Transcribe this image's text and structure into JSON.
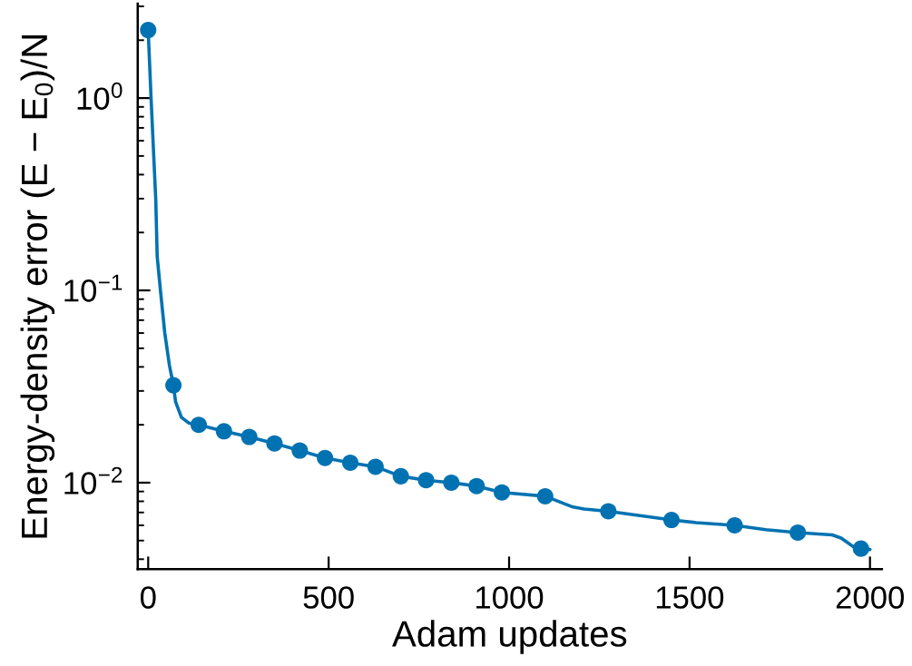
{
  "chart_data": {
    "type": "line",
    "xlabel": "Adam updates",
    "ylabel": "Energy-density error (E − E$_{0}$)/N",
    "log": "y",
    "grid": false,
    "xlim": [
      -29,
      2033
    ],
    "ylim": [
      0.00355,
      3.1
    ],
    "xticks": [
      0,
      500,
      1000,
      1500,
      2000
    ],
    "yticks": [
      {
        "value": 1,
        "label": "10$^{0}$"
      },
      {
        "value": 0.1,
        "label": "10$^{−1}$"
      },
      {
        "value": 0.01,
        "label": "10$^{−2}$"
      },
      {
        "value": 0.004,
        "label": null
      },
      {
        "value": 0.005,
        "label": null
      },
      {
        "value": 0.006,
        "label": null
      },
      {
        "value": 0.007,
        "label": null
      },
      {
        "value": 0.008,
        "label": null
      },
      {
        "value": 0.009,
        "label": null
      },
      {
        "value": 0.02,
        "label": null
      },
      {
        "value": 0.03,
        "label": null
      },
      {
        "value": 0.04,
        "label": null
      },
      {
        "value": 0.05,
        "label": null
      },
      {
        "value": 0.06,
        "label": null
      },
      {
        "value": 0.07,
        "label": null
      },
      {
        "value": 0.08,
        "label": null
      },
      {
        "value": 0.09,
        "label": null
      },
      {
        "value": 0.2,
        "label": null
      },
      {
        "value": 0.3,
        "label": null
      },
      {
        "value": 0.4,
        "label": null
      },
      {
        "value": 0.5,
        "label": null
      },
      {
        "value": 0.6,
        "label": null
      },
      {
        "value": 0.7,
        "label": null
      },
      {
        "value": 0.8,
        "label": null
      },
      {
        "value": 0.9,
        "label": null
      },
      {
        "value": 2,
        "label": null
      },
      {
        "value": 3,
        "label": null
      }
    ],
    "series": [
      {
        "type": "line",
        "color": "#0072b2",
        "marker": "none",
        "line_style": "solid",
        "x": [
          0,
          8,
          21,
          25,
          34,
          46,
          59,
          70,
          76,
          92,
          113,
          140,
          210,
          280,
          350,
          420,
          490,
          560,
          630,
          700,
          770,
          840,
          910,
          980,
          1100,
          1174,
          1208,
          1275,
          1450,
          1518,
          1625,
          1711,
          1800,
          1895,
          1920,
          1953,
          1975,
          2000
        ],
        "values": [
          2.26,
          1.0,
          0.297,
          0.15,
          0.1,
          0.06,
          0.0406,
          0.0321,
          0.0263,
          0.0219,
          0.0204,
          0.02,
          0.0185,
          0.0173,
          0.016,
          0.0147,
          0.01345,
          0.0127,
          0.0121,
          0.0108,
          0.0103,
          0.01,
          0.0096,
          0.0089,
          0.0085,
          0.0075,
          0.0073,
          0.0071,
          0.0064,
          0.0062,
          0.006,
          0.0057,
          0.0055,
          0.00535,
          0.00515,
          0.00466,
          0.00454,
          0.00449
        ]
      },
      {
        "type": "scatter",
        "color": "#0072b2",
        "marker": "circle",
        "x": [
          0,
          70,
          140,
          210,
          280,
          350,
          420,
          490,
          560,
          630,
          700,
          770,
          840,
          910,
          980,
          1100,
          1275,
          1450,
          1625,
          1800,
          1975
        ],
        "values": [
          2.26,
          0.0321,
          0.02,
          0.0185,
          0.0173,
          0.016,
          0.0147,
          0.01345,
          0.0127,
          0.0121,
          0.0108,
          0.0103,
          0.01,
          0.0096,
          0.0089,
          0.0085,
          0.0071,
          0.0064,
          0.006,
          0.0055,
          0.00454
        ]
      }
    ]
  }
}
